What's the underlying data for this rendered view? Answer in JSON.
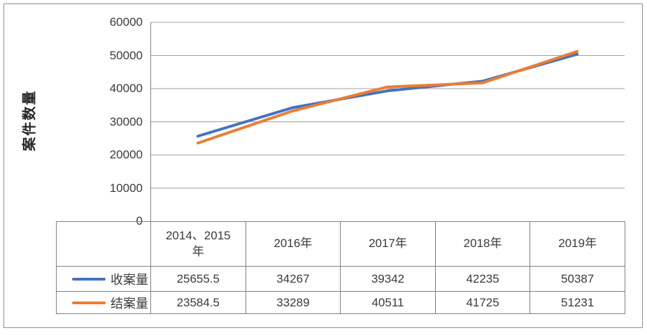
{
  "chart_data": {
    "type": "line",
    "title": "",
    "xlabel": "",
    "ylabel": "案件数量",
    "ylim": [
      0,
      60000
    ],
    "ytick_interval": 10000,
    "yticks_display": [
      "60000",
      "50000",
      "40000",
      "30000",
      "20000",
      "10000",
      "0"
    ],
    "grid": "horizontal",
    "legend_position": "table-left",
    "categories": [
      "2014、2015年",
      "2016年",
      "2017年",
      "2018年",
      "2019年"
    ],
    "series": [
      {
        "name": "收案量",
        "color": "#4472C4",
        "values": [
          25655.5,
          34267,
          39342,
          42235,
          50387
        ]
      },
      {
        "name": "结案量",
        "color": "#ED7D31",
        "values": [
          23584.5,
          33289,
          40511,
          41725,
          51231
        ]
      }
    ]
  },
  "table": {
    "headers": [
      "2014、2015\n年",
      "2016年",
      "2017年",
      "2018年",
      "2019年"
    ],
    "rows": [
      {
        "label": "收案量",
        "values": [
          "25655.5",
          "34267",
          "39342",
          "42235",
          "50387"
        ]
      },
      {
        "label": "结案量",
        "values": [
          "23584.5",
          "33289",
          "40511",
          "41725",
          "51231"
        ]
      }
    ]
  }
}
